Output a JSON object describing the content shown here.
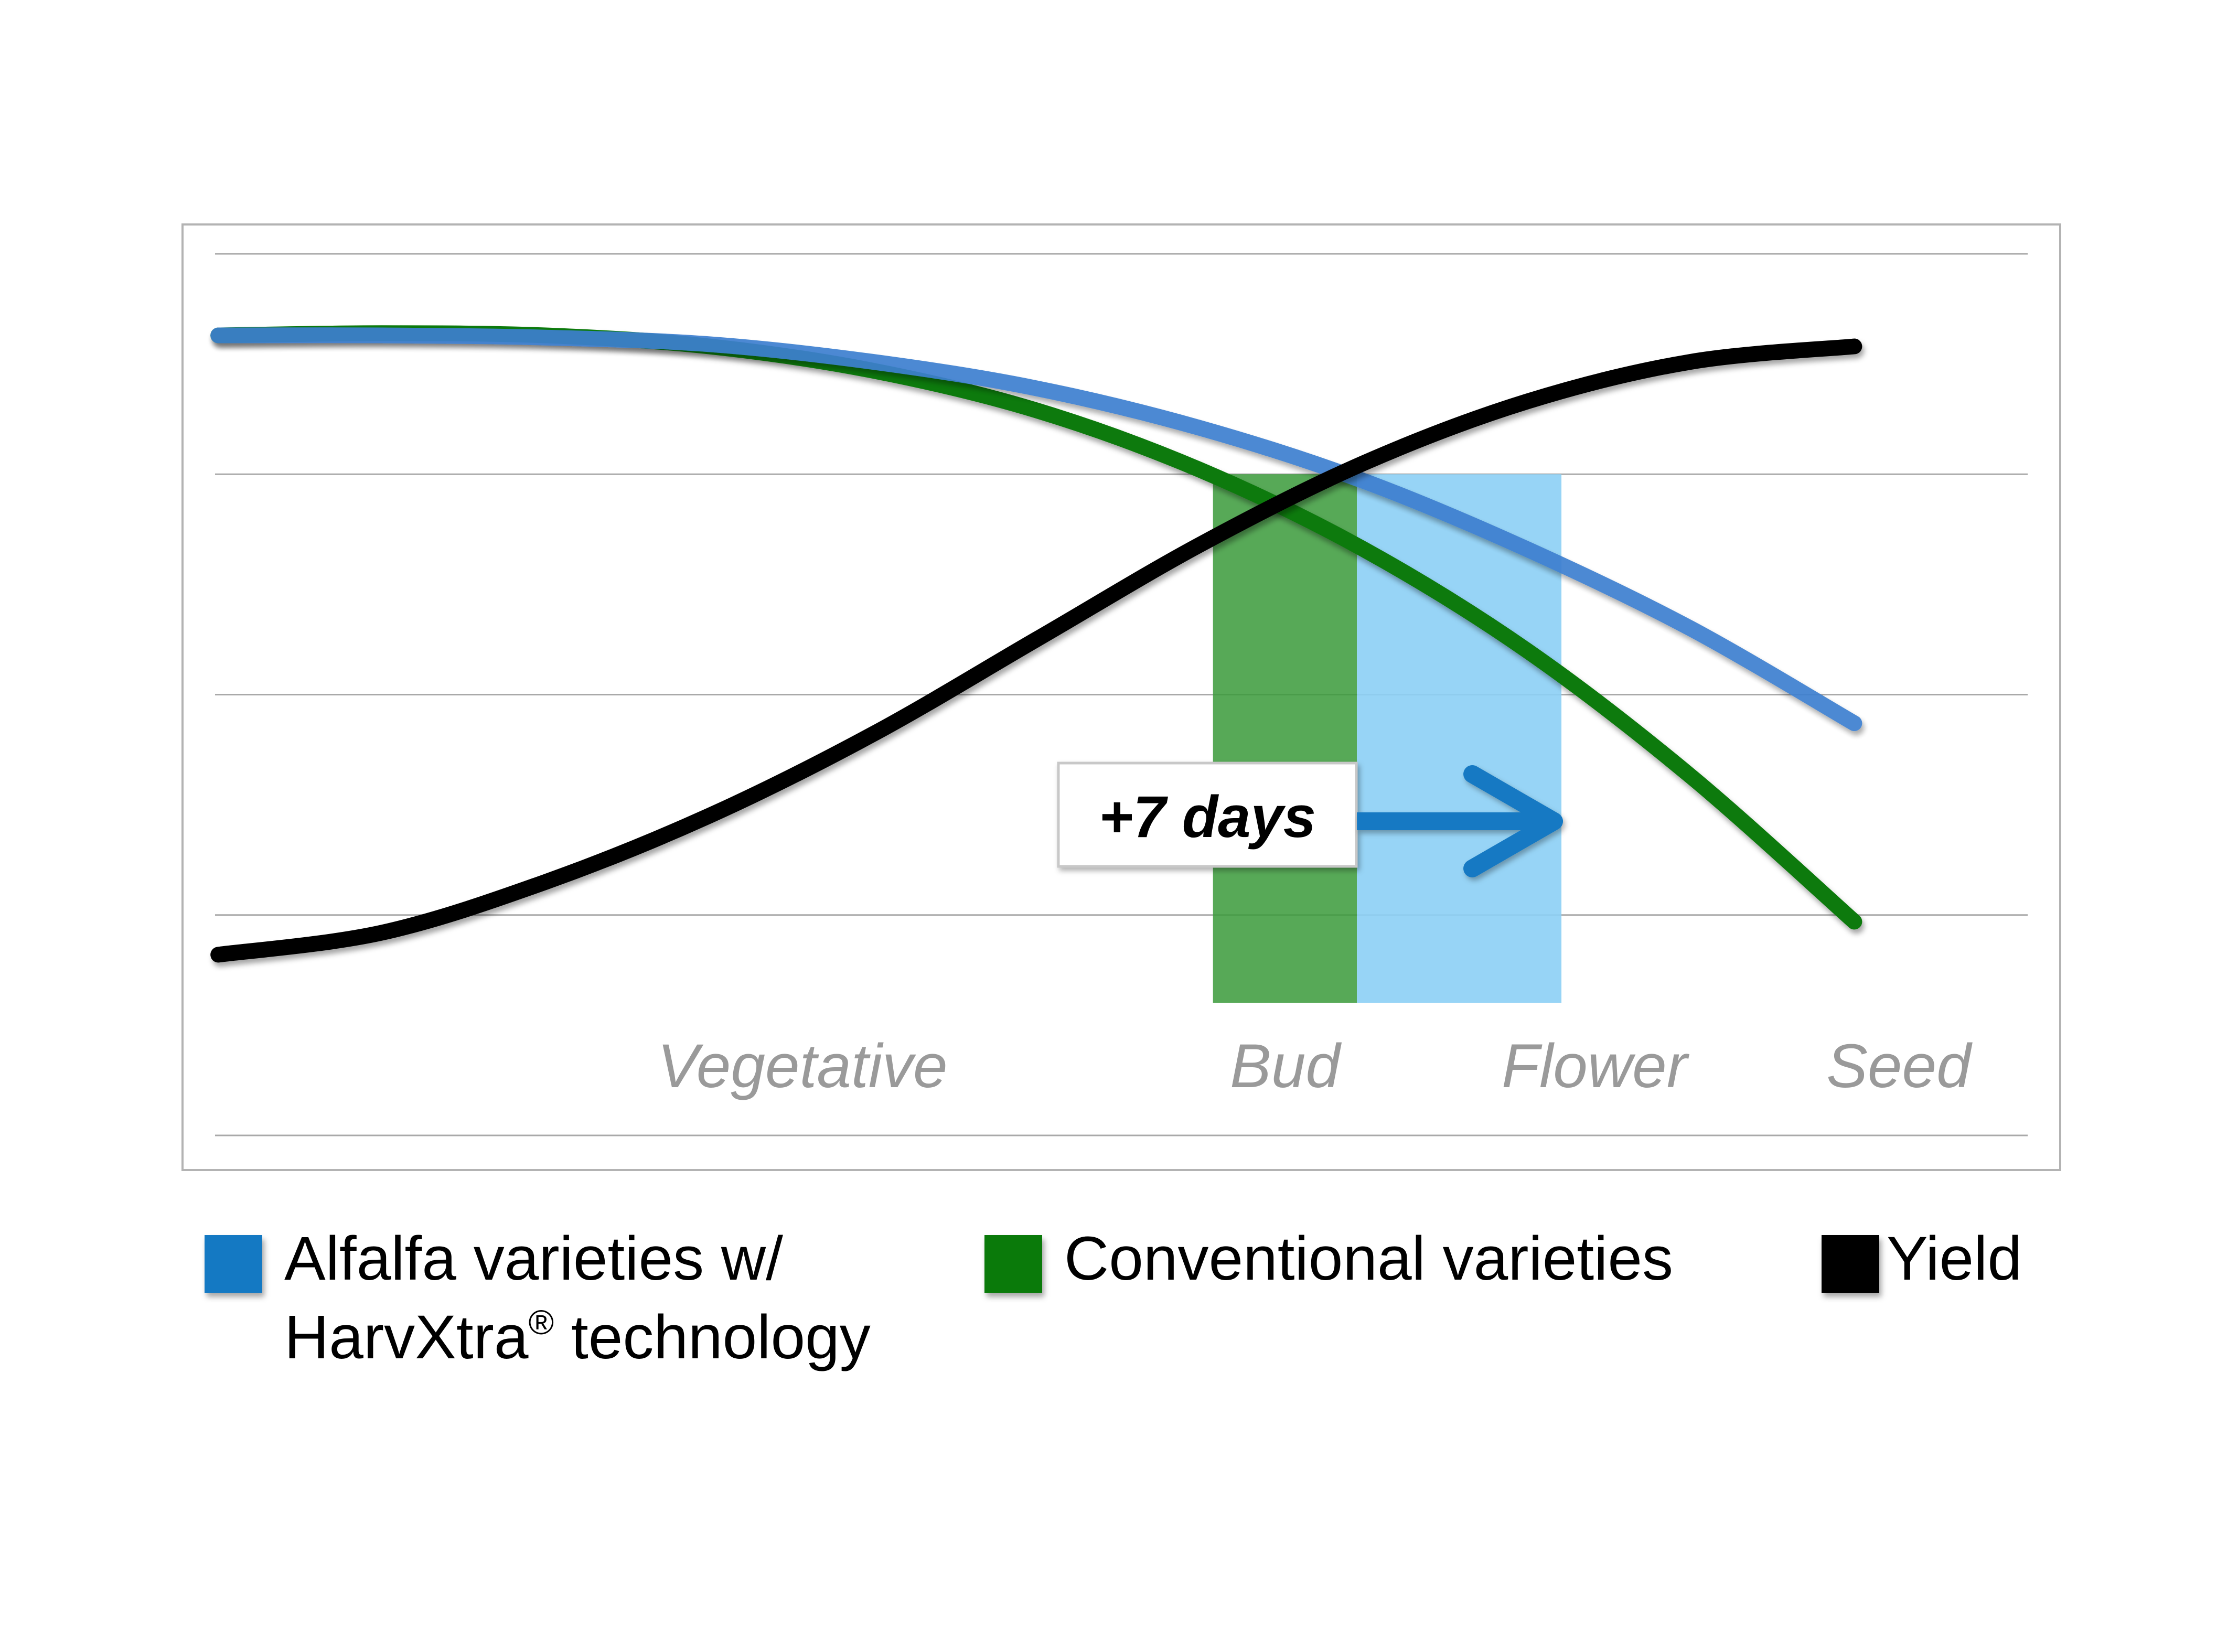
{
  "chart_data": {
    "type": "line",
    "x": [
      0,
      1,
      2,
      3,
      4,
      5,
      6,
      7,
      8,
      9,
      10
    ],
    "series": [
      {
        "name": "Alfalfa varieties w/ HarvXtra® technology",
        "color": "#3c7fd0",
        "values": [
          3.63,
          3.63,
          3.62,
          3.59,
          3.51,
          3.39,
          3.21,
          2.97,
          2.66,
          2.3,
          1.87
        ]
      },
      {
        "name": "Conventional varieties",
        "color": "#0a7a0a",
        "values": [
          3.63,
          3.64,
          3.63,
          3.58,
          3.47,
          3.29,
          3.02,
          2.66,
          2.2,
          1.63,
          0.97
        ]
      },
      {
        "name": "Yield",
        "color": "#000000",
        "values": [
          0.82,
          0.92,
          1.15,
          1.45,
          1.82,
          2.25,
          2.68,
          3.05,
          3.33,
          3.51,
          3.58
        ]
      }
    ],
    "stages": [
      "Vegetative",
      "Bud",
      "Flower",
      "Seed"
    ],
    "highlight_bands": [
      {
        "label": "Bud",
        "x_start": 6.08,
        "x_end": 6.96,
        "color": "#3a9a3a"
      },
      {
        "label": "Flower",
        "x_start": 6.96,
        "x_end": 8.21,
        "color": "#8ccff5"
      }
    ],
    "annotation": {
      "text": "+7 days",
      "arrow_from_x": 6.96,
      "arrow_to_x": 8.21
    },
    "xlim": [
      -0.02,
      11.06
    ],
    "ylim": [
      0,
      4
    ],
    "grid": true,
    "legend_position": "bottom",
    "title": "",
    "xlabel": "",
    "ylabel": ""
  },
  "legend": {
    "alfalfa_line1": "Alfalfa varieties w/",
    "alfalfa_line2_pre": "HarvXtra",
    "alfalfa_line2_sup": "®",
    "alfalfa_line2_post": " technology",
    "conventional": "Conventional varieties",
    "yield": "Yield"
  },
  "colors": {
    "alfalfa_swatch": "#1479c3",
    "conventional_swatch": "#0a7a0a",
    "yield_swatch": "#000000",
    "arrow": "#1479c3",
    "gridline": "#a9a9a9",
    "frame": "#b3b3b3",
    "stage_text": "#9a9a9a"
  }
}
